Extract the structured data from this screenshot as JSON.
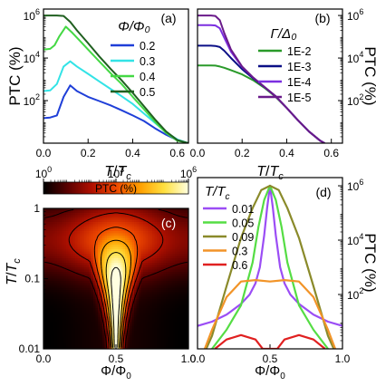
{
  "colors": {
    "c02": "#1f3fd8",
    "c03": "#33e3e6",
    "c04": "#44d844",
    "c05": "#206020",
    "g1e2": "#2a9a2a",
    "g1e3": "#0b0f86",
    "g1e4": "#7b2fe0",
    "g1e5": "#6a1a8a",
    "d001": "#9b4df5",
    "d005": "#55dd44",
    "d009": "#8a8a2a",
    "d03": "#f29428",
    "d06": "#e02020"
  },
  "chart_data": [
    {
      "panel": "(a)",
      "type": "line",
      "xlabel": "T/T_c",
      "ylabel": "PTC (%)",
      "ylog": true,
      "xlim": [
        0,
        0.65
      ],
      "ylim": [
        1,
        2000000
      ],
      "xticks": [
        "0.0",
        "0.2",
        "0.4",
        "0.6"
      ],
      "yticks": [
        {
          "mant": "10",
          "exp": "2"
        },
        {
          "mant": "10",
          "exp": "4"
        },
        {
          "mant": "10",
          "exp": "6"
        }
      ],
      "legend_title": "Φ/Φ₀",
      "legend_placement": "right",
      "series": [
        {
          "name": "0.2",
          "color_key": "c02",
          "x": [
            0,
            0.03,
            0.06,
            0.09,
            0.12,
            0.15,
            0.2,
            0.25,
            0.3,
            0.35,
            0.4,
            0.45,
            0.5,
            0.55,
            0.6,
            0.65
          ],
          "y": [
            15,
            16,
            20,
            150,
            520,
            280,
            150,
            95,
            60,
            35,
            20,
            11,
            5,
            2.5,
            1.4,
            1
          ]
        },
        {
          "name": "0.3",
          "color_key": "c03",
          "x": [
            0,
            0.03,
            0.06,
            0.09,
            0.12,
            0.15,
            0.2,
            0.25,
            0.3,
            0.35,
            0.4,
            0.45,
            0.5,
            0.55,
            0.6,
            0.65
          ],
          "y": [
            280,
            300,
            600,
            4000,
            7000,
            4000,
            1800,
            800,
            360,
            160,
            70,
            25,
            9,
            3.2,
            1.5,
            1
          ]
        },
        {
          "name": "0.4",
          "color_key": "c04",
          "x": [
            0,
            0.03,
            0.05,
            0.07,
            0.1,
            0.13,
            0.16,
            0.2,
            0.25,
            0.3,
            0.35,
            0.4,
            0.45,
            0.5,
            0.55,
            0.6,
            0.65
          ],
          "y": [
            25000,
            27000,
            40000,
            100000,
            300000,
            150000,
            70000,
            25000,
            7000,
            2000,
            600,
            150,
            40,
            10,
            3,
            1.3,
            1
          ]
        },
        {
          "name": "0.5",
          "color_key": "c05",
          "x": [
            0,
            0.03,
            0.06,
            0.09,
            0.12,
            0.15,
            0.2,
            0.25,
            0.3,
            0.35,
            0.4,
            0.45,
            0.5,
            0.55,
            0.6,
            0.65
          ],
          "y": [
            1000000,
            1000000,
            1000000,
            950000,
            500000,
            200000,
            50000,
            12000,
            3200,
            900,
            230,
            55,
            13,
            3.5,
            1.4,
            1
          ]
        }
      ]
    },
    {
      "panel": "(b)",
      "type": "line",
      "xlabel": "T/T_c",
      "ylabel": "PTC (%)",
      "ylog": true,
      "ylabel_side": "right",
      "xlim": [
        0,
        0.65
      ],
      "ylim": [
        1,
        2000000
      ],
      "xticks": [
        "0.0",
        "0.2",
        "0.4",
        "0.6"
      ],
      "yticks": [
        {
          "mant": "10",
          "exp": "2"
        },
        {
          "mant": "10",
          "exp": "4"
        },
        {
          "mant": "10",
          "exp": "6"
        }
      ],
      "legend_title": "Γ/Δ₀",
      "legend_placement": "right",
      "series": [
        {
          "name": "1E-2",
          "color_key": "g1e2",
          "x": [
            0,
            0.03,
            0.06,
            0.08,
            0.1,
            0.12,
            0.15,
            0.2,
            0.25,
            0.3,
            0.35,
            0.4,
            0.45,
            0.5,
            0.55,
            0.57
          ],
          "y": [
            4500,
            4500,
            4500,
            4400,
            4000,
            3500,
            2700,
            1700,
            900,
            400,
            150,
            45,
            12,
            3.5,
            1.3,
            1
          ]
        },
        {
          "name": "1E-3",
          "color_key": "g1e3",
          "x": [
            0,
            0.03,
            0.06,
            0.08,
            0.1,
            0.12,
            0.15,
            0.2,
            0.25,
            0.3,
            0.35,
            0.4,
            0.45,
            0.5,
            0.55,
            0.57
          ],
          "y": [
            38000,
            38000,
            38000,
            37000,
            33000,
            22000,
            10000,
            3000,
            1100,
            430,
            160,
            45,
            12,
            3.5,
            1.3,
            1
          ]
        },
        {
          "name": "1E-4",
          "color_key": "g1e4",
          "x": [
            0,
            0.03,
            0.06,
            0.08,
            0.1,
            0.12,
            0.15,
            0.2,
            0.25,
            0.3,
            0.35,
            0.4,
            0.45,
            0.5,
            0.55,
            0.57
          ],
          "y": [
            350000,
            350000,
            350000,
            340000,
            250000,
            90000,
            20000,
            3800,
            1200,
            440,
            160,
            45,
            12,
            3.5,
            1.3,
            1
          ]
        },
        {
          "name": "1E-5",
          "color_key": "g1e5",
          "x": [
            0,
            0.03,
            0.06,
            0.08,
            0.1,
            0.12,
            0.15,
            0.2,
            0.25,
            0.3,
            0.35,
            0.4,
            0.45,
            0.5,
            0.55,
            0.57
          ],
          "y": [
            1000000,
            1000000,
            1000000,
            950000,
            600000,
            150000,
            25000,
            4000,
            1200,
            440,
            160,
            45,
            12,
            3.5,
            1.3,
            1
          ]
        }
      ]
    },
    {
      "panel": "(c)",
      "type": "heatmap",
      "xlabel": "Φ/Φ_0",
      "ylabel": "T/T_c",
      "ylog": true,
      "xlim": [
        0,
        1
      ],
      "ylim": [
        0.01,
        1
      ],
      "xticks": [
        "0.0",
        "0.5",
        "1.0"
      ],
      "yticks": [
        "1",
        "0.1",
        "0.01"
      ],
      "colorbar_label": "PTC (%)",
      "colorbar_placement": "top",
      "colorbar_range": [
        1,
        1000000
      ],
      "colorbar_ticks": [
        {
          "mant": "10",
          "exp": "0"
        },
        {
          "mant": "10",
          "exp": "3"
        },
        {
          "mant": "10",
          "exp": "6"
        }
      ],
      "colormap": [
        "#000000",
        "#5a0000",
        "#b01000",
        "#ee4800",
        "#ffa000",
        "#ffe040",
        "#ffffe0"
      ],
      "contour_levels": [
        10,
        100,
        1000,
        10000,
        100000,
        1000000
      ]
    },
    {
      "panel": "(d)",
      "type": "line",
      "xlabel": "Φ/Φ_0",
      "ylabel": "PTC (%)",
      "ylog": true,
      "ylabel_side": "right",
      "xlim": [
        0,
        1
      ],
      "ylim": [
        1,
        2000000
      ],
      "xticks": [
        "0.0",
        "0.5",
        "1.0"
      ],
      "yticks": [
        {
          "mant": "10",
          "exp": "2"
        },
        {
          "mant": "10",
          "exp": "4"
        },
        {
          "mant": "10",
          "exp": "6"
        }
      ],
      "legend_title": "T/T_c",
      "legend_placement": "top-left",
      "series": [
        {
          "name": "0.01",
          "color_key": "d001",
          "x": [
            0,
            0.1,
            0.2,
            0.3,
            0.36,
            0.4,
            0.43,
            0.46,
            0.48,
            0.5,
            0.52,
            0.54,
            0.57,
            0.6,
            0.64,
            0.7,
            0.8,
            0.9,
            1.0
          ],
          "y": [
            7,
            10,
            18,
            45,
            100,
            260,
            1000,
            15000,
            150000,
            1000000,
            150000,
            15000,
            1000,
            260,
            100,
            45,
            18,
            10,
            7
          ]
        },
        {
          "name": "0.05",
          "color_key": "d005",
          "x": [
            0.1,
            0.2,
            0.3,
            0.38,
            0.42,
            0.46,
            0.5,
            0.54,
            0.58,
            0.62,
            0.7,
            0.8,
            0.9
          ],
          "y": [
            1,
            5,
            40,
            1500,
            30000,
            300000,
            1000000,
            300000,
            30000,
            1500,
            40,
            5,
            1
          ]
        },
        {
          "name": "0.09",
          "color_key": "d009",
          "x": [
            0.06,
            0.1,
            0.2,
            0.3,
            0.38,
            0.44,
            0.5,
            0.56,
            0.62,
            0.7,
            0.8,
            0.9,
            0.94
          ],
          "y": [
            1,
            3,
            200,
            12000,
            150000,
            700000,
            1000000,
            700000,
            150000,
            12000,
            200,
            3,
            1
          ]
        },
        {
          "name": "0.3",
          "color_key": "d03",
          "x": [
            0.05,
            0.1,
            0.2,
            0.3,
            0.4,
            0.5,
            0.6,
            0.7,
            0.8,
            0.9,
            0.95
          ],
          "y": [
            1,
            5,
            80,
            300,
            340,
            300,
            340,
            300,
            80,
            5,
            1
          ]
        },
        {
          "name": "0.6",
          "color_key": "d06",
          "x": [
            0.12,
            0.2,
            0.3,
            0.4,
            0.45,
            0.55,
            0.6,
            0.7,
            0.8,
            0.88
          ],
          "y": [
            1,
            2.2,
            3.2,
            2.2,
            1,
            1,
            2.2,
            3.2,
            2.2,
            1
          ]
        }
      ]
    }
  ]
}
